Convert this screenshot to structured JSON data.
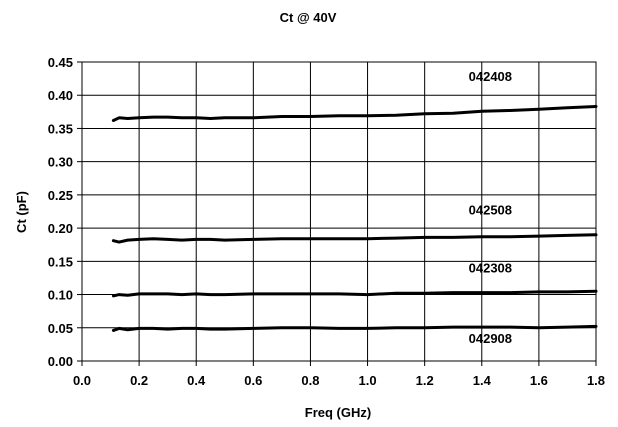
{
  "chart_data": {
    "type": "line",
    "title": "Ct @ 40V",
    "xlabel": "Freq (GHz)",
    "ylabel": "Ct (pF)",
    "xlim": [
      0.0,
      1.8
    ],
    "ylim": [
      0.0,
      0.45
    ],
    "xticks": [
      "0.0",
      "0.2",
      "0.4",
      "0.6",
      "0.8",
      "1.0",
      "1.2",
      "1.4",
      "1.6",
      "1.8"
    ],
    "yticks": [
      "0.00",
      "0.05",
      "0.10",
      "0.15",
      "0.20",
      "0.25",
      "0.30",
      "0.35",
      "0.40",
      "0.45"
    ],
    "grid": true,
    "legend": "none",
    "series": [
      {
        "name": "042408",
        "x": [
          0.11,
          0.13,
          0.16,
          0.2,
          0.25,
          0.3,
          0.35,
          0.4,
          0.45,
          0.5,
          0.6,
          0.7,
          0.8,
          0.9,
          1.0,
          1.1,
          1.2,
          1.3,
          1.4,
          1.5,
          1.6,
          1.7,
          1.8
        ],
        "y": [
          0.362,
          0.366,
          0.365,
          0.366,
          0.367,
          0.367,
          0.366,
          0.366,
          0.365,
          0.366,
          0.366,
          0.368,
          0.368,
          0.369,
          0.369,
          0.37,
          0.372,
          0.373,
          0.376,
          0.377,
          0.379,
          0.381,
          0.383
        ]
      },
      {
        "name": "042508",
        "x": [
          0.11,
          0.13,
          0.16,
          0.2,
          0.25,
          0.3,
          0.35,
          0.4,
          0.45,
          0.5,
          0.6,
          0.7,
          0.8,
          0.9,
          1.0,
          1.1,
          1.2,
          1.3,
          1.4,
          1.5,
          1.6,
          1.7,
          1.8
        ],
        "y": [
          0.181,
          0.179,
          0.182,
          0.183,
          0.184,
          0.183,
          0.182,
          0.183,
          0.183,
          0.182,
          0.183,
          0.184,
          0.184,
          0.184,
          0.184,
          0.185,
          0.186,
          0.186,
          0.187,
          0.187,
          0.188,
          0.189,
          0.19
        ]
      },
      {
        "name": "042308",
        "x": [
          0.11,
          0.13,
          0.16,
          0.2,
          0.25,
          0.3,
          0.35,
          0.4,
          0.45,
          0.5,
          0.6,
          0.7,
          0.8,
          0.9,
          1.0,
          1.1,
          1.2,
          1.3,
          1.4,
          1.5,
          1.6,
          1.7,
          1.8
        ],
        "y": [
          0.098,
          0.1,
          0.099,
          0.101,
          0.101,
          0.101,
          0.1,
          0.101,
          0.1,
          0.1,
          0.101,
          0.101,
          0.101,
          0.101,
          0.1,
          0.102,
          0.102,
          0.103,
          0.103,
          0.103,
          0.104,
          0.104,
          0.105
        ]
      },
      {
        "name": "042908",
        "x": [
          0.11,
          0.13,
          0.16,
          0.2,
          0.25,
          0.3,
          0.35,
          0.4,
          0.45,
          0.5,
          0.6,
          0.7,
          0.8,
          0.9,
          1.0,
          1.1,
          1.2,
          1.3,
          1.4,
          1.5,
          1.6,
          1.7,
          1.8
        ],
        "y": [
          0.046,
          0.049,
          0.047,
          0.049,
          0.049,
          0.048,
          0.049,
          0.049,
          0.048,
          0.048,
          0.049,
          0.05,
          0.05,
          0.049,
          0.049,
          0.05,
          0.05,
          0.051,
          0.051,
          0.051,
          0.05,
          0.051,
          0.052
        ]
      }
    ]
  }
}
